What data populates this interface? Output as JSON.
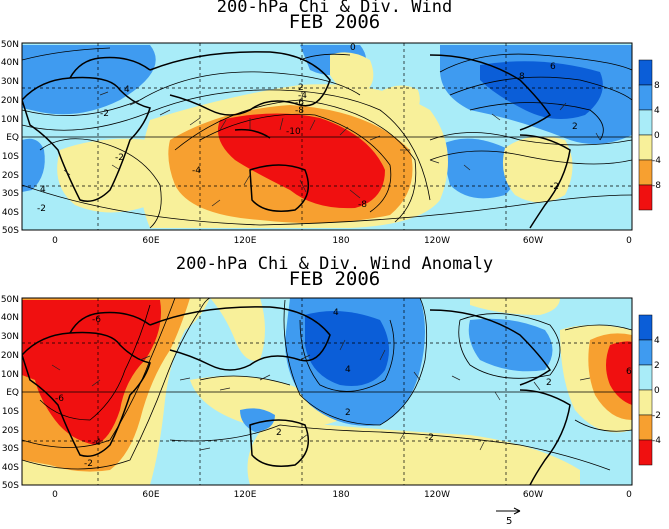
{
  "panels": [
    {
      "title": "200-hPa Chi & Div. Wind",
      "subtitle": "FEB 2006",
      "lat_labels": [
        "50N",
        "40N",
        "30N",
        "20N",
        "10N",
        "EQ",
        "10S",
        "20S",
        "30S",
        "40S",
        "50S"
      ],
      "lon_labels": [
        "0",
        "60E",
        "120E",
        "180",
        "120W",
        "60W",
        "0"
      ],
      "contour_labels": [
        "0",
        "-4",
        "-8",
        "2",
        "4",
        "-2",
        "-6",
        "-10",
        "8",
        "6",
        "-2",
        "2",
        "-4",
        "-2",
        "4",
        "-8",
        "-2"
      ],
      "colorbar": {
        "labels": [
          "8",
          "4",
          "0",
          "-4",
          "-8"
        ],
        "colors": [
          "#0b5ed8",
          "#3f9bf0",
          "#a9ecf8",
          "#f8f09a",
          "#f7a030",
          "#f01010"
        ]
      }
    },
    {
      "title": "200-hPa Chi & Div. Wind Anomaly",
      "subtitle": "FEB 2006",
      "lat_labels": [
        "50N",
        "40N",
        "30N",
        "20N",
        "10N",
        "EQ",
        "10S",
        "20S",
        "30S",
        "40S",
        "50S"
      ],
      "lon_labels": [
        "0",
        "60E",
        "120E",
        "180",
        "120W",
        "60W",
        "0"
      ],
      "contour_labels": [
        "-6",
        "-6",
        "-4",
        "-2",
        "2",
        "4",
        "4",
        "2",
        "-2",
        "2",
        "6"
      ],
      "colorbar": {
        "labels": [
          "4",
          "2",
          "0",
          "-2",
          "-4"
        ],
        "colors": [
          "#0b5ed8",
          "#3f9bf0",
          "#a9ecf8",
          "#f8f09a",
          "#f7a030",
          "#f01010"
        ]
      }
    }
  ],
  "vector_reference": {
    "label": "5"
  }
}
